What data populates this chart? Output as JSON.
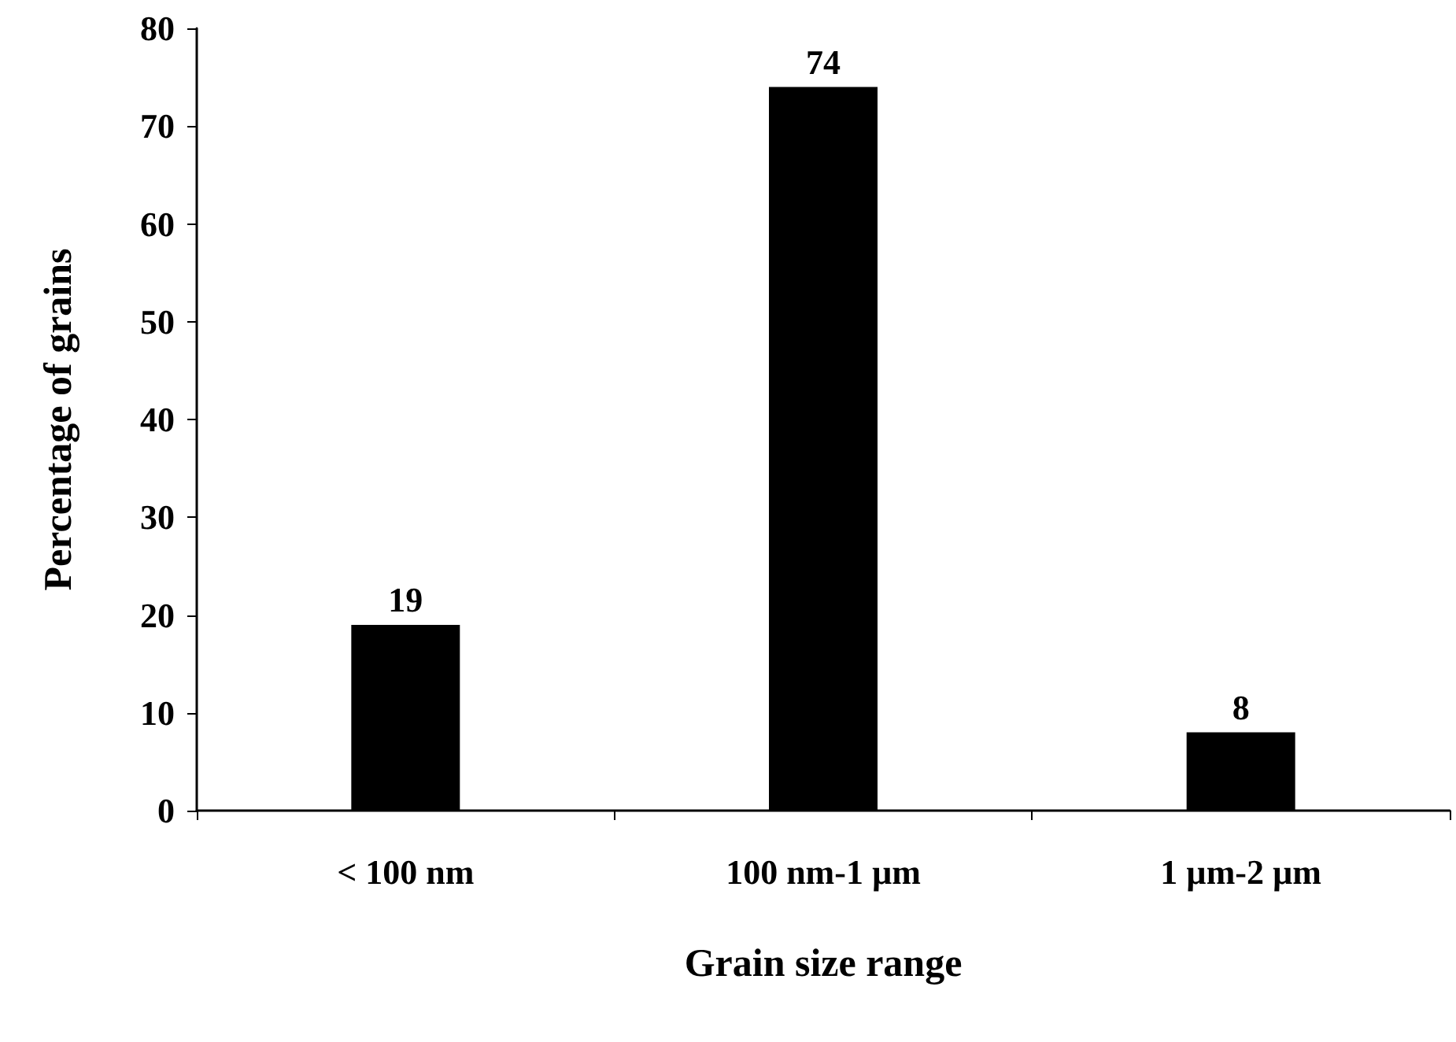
{
  "chart_data": {
    "type": "bar",
    "xlabel": "Grain size range",
    "ylabel": "Percentage of grains",
    "categories": [
      "< 100 nm",
      "100 nm-1 µm",
      "1 µm-2 µm"
    ],
    "values": [
      19,
      74,
      8
    ],
    "color": "#000000",
    "ylim": [
      0,
      80
    ],
    "yticks": [
      0,
      10,
      20,
      30,
      40,
      50,
      60,
      70,
      80
    ],
    "grid": false,
    "data_labels": true
  }
}
